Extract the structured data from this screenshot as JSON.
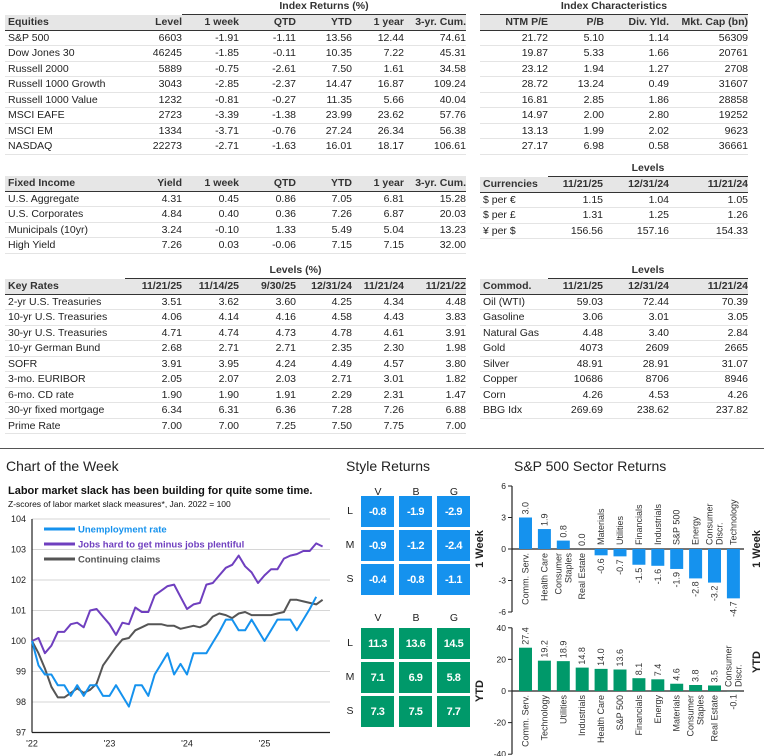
{
  "equities": {
    "group_label": "Index Returns (%)",
    "headers": [
      "Equities",
      "Level",
      "1 week",
      "QTD",
      "YTD",
      "1 year",
      "3-yr. Cum."
    ],
    "rows": [
      [
        "S&P 500",
        "6603",
        "-1.91",
        "-1.11",
        "13.56",
        "12.44",
        "74.61"
      ],
      [
        "Dow Jones 30",
        "46245",
        "-1.85",
        "-0.11",
        "10.35",
        "7.22",
        "45.31"
      ],
      [
        "Russell 2000",
        "5889",
        "-0.75",
        "-2.61",
        "7.50",
        "1.61",
        "34.58"
      ],
      [
        "Russell 1000 Growth",
        "3043",
        "-2.85",
        "-2.37",
        "14.47",
        "16.87",
        "109.24"
      ],
      [
        "Russell 1000 Value",
        "1232",
        "-0.81",
        "-0.27",
        "11.35",
        "5.66",
        "40.04"
      ],
      [
        "MSCI EAFE",
        "2723",
        "-3.39",
        "-1.38",
        "23.99",
        "23.62",
        "57.76"
      ],
      [
        "MSCI EM",
        "1334",
        "-3.71",
        "-0.76",
        "27.24",
        "26.34",
        "56.38"
      ],
      [
        "NASDAQ",
        "22273",
        "-2.71",
        "-1.63",
        "16.01",
        "18.17",
        "106.61"
      ]
    ]
  },
  "index_characteristics": {
    "group_label": "Index Characteristics",
    "headers": [
      "NTM P/E",
      "P/B",
      "Div. Yld.",
      "Mkt. Cap (bn)"
    ],
    "rows": [
      [
        "21.72",
        "5.10",
        "1.14",
        "56309"
      ],
      [
        "19.87",
        "5.33",
        "1.66",
        "20761"
      ],
      [
        "23.12",
        "1.94",
        "1.27",
        "2708"
      ],
      [
        "28.72",
        "13.24",
        "0.49",
        "31607"
      ],
      [
        "16.81",
        "2.85",
        "1.86",
        "28858"
      ],
      [
        "14.97",
        "2.00",
        "2.80",
        "19252"
      ],
      [
        "13.13",
        "1.99",
        "2.02",
        "9623"
      ],
      [
        "27.17",
        "6.98",
        "0.58",
        "36661"
      ]
    ]
  },
  "fixed_income": {
    "headers": [
      "Fixed Income",
      "Yield",
      "1 week",
      "QTD",
      "YTD",
      "1 year",
      "3-yr. Cum."
    ],
    "rows": [
      [
        "U.S. Aggregate",
        "4.31",
        "0.45",
        "0.86",
        "7.05",
        "6.81",
        "15.28"
      ],
      [
        "U.S. Corporates",
        "4.84",
        "0.40",
        "0.36",
        "7.26",
        "6.87",
        "20.03"
      ],
      [
        "Municipals (10yr)",
        "3.24",
        "-0.10",
        "1.33",
        "5.49",
        "5.04",
        "13.23"
      ],
      [
        "High Yield",
        "7.26",
        "0.03",
        "-0.06",
        "7.15",
        "7.15",
        "32.00"
      ]
    ]
  },
  "key_rates": {
    "group_label": "Levels (%)",
    "headers": [
      "Key Rates",
      "11/21/25",
      "11/14/25",
      "9/30/25",
      "12/31/24",
      "11/21/24",
      "11/21/22"
    ],
    "rows": [
      [
        "2-yr U.S. Treasuries",
        "3.51",
        "3.62",
        "3.60",
        "4.25",
        "4.34",
        "4.48"
      ],
      [
        "10-yr U.S. Treasuries",
        "4.06",
        "4.14",
        "4.16",
        "4.58",
        "4.43",
        "3.83"
      ],
      [
        "30-yr U.S. Treasuries",
        "4.71",
        "4.74",
        "4.73",
        "4.78",
        "4.61",
        "3.91"
      ],
      [
        "10-yr German Bund",
        "2.68",
        "2.71",
        "2.71",
        "2.35",
        "2.30",
        "1.98"
      ],
      [
        "SOFR",
        "3.91",
        "3.95",
        "4.24",
        "4.49",
        "4.57",
        "3.80"
      ],
      [
        "3-mo. EURIBOR",
        "2.05",
        "2.07",
        "2.03",
        "2.71",
        "3.01",
        "1.82"
      ],
      [
        "6-mo. CD rate",
        "1.90",
        "1.90",
        "1.91",
        "2.29",
        "2.31",
        "1.47"
      ],
      [
        "30-yr fixed mortgage",
        "6.34",
        "6.31",
        "6.36",
        "7.28",
        "7.26",
        "6.88"
      ],
      [
        "Prime Rate",
        "7.00",
        "7.00",
        "7.25",
        "7.50",
        "7.75",
        "7.00"
      ]
    ]
  },
  "currencies": {
    "group_label": "Levels",
    "headers": [
      "Currencies",
      "11/21/25",
      "12/31/24",
      "11/21/24"
    ],
    "rows": [
      [
        "$ per €",
        "1.15",
        "1.04",
        "1.05"
      ],
      [
        "$ per £",
        "1.31",
        "1.25",
        "1.26"
      ],
      [
        "¥ per $",
        "156.56",
        "157.16",
        "154.33"
      ]
    ]
  },
  "commodities": {
    "group_label": "Levels",
    "headers": [
      "Commod.",
      "11/21/25",
      "12/31/24",
      "11/21/24"
    ],
    "rows": [
      [
        "Oil (WTI)",
        "59.03",
        "72.44",
        "70.39"
      ],
      [
        "Gasoline",
        "3.06",
        "3.01",
        "3.05"
      ],
      [
        "Natural Gas",
        "4.48",
        "3.40",
        "2.84"
      ],
      [
        "Gold",
        "4073",
        "2609",
        "2665"
      ],
      [
        "Silver",
        "48.91",
        "28.91",
        "31.07"
      ],
      [
        "Copper",
        "10686",
        "8706",
        "8946"
      ],
      [
        "Corn",
        "4.26",
        "4.53",
        "4.26"
      ],
      [
        "BBG Idx",
        "269.69",
        "238.62",
        "237.82"
      ]
    ]
  },
  "chart_of_week": {
    "section_title": "Chart of the Week",
    "title": "Labor market slack has been building for quite some time.",
    "subtitle": "Z-scores of labor market slack measures*, Jan. 2022 = 100"
  },
  "style_returns": {
    "title": "Style Returns",
    "columns": [
      "V",
      "B",
      "G"
    ],
    "rows": [
      "L",
      "M",
      "S"
    ],
    "week": [
      [
        "-0.8",
        "-1.9",
        "-2.9"
      ],
      [
        "-0.9",
        "-1.2",
        "-2.4"
      ],
      [
        "-0.4",
        "-0.8",
        "-1.1"
      ]
    ],
    "ytd": [
      [
        "11.3",
        "13.6",
        "14.5"
      ],
      [
        "7.1",
        "6.9",
        "5.8"
      ],
      [
        "7.3",
        "7.5",
        "7.7"
      ]
    ],
    "colors": {
      "week": "#1592ee",
      "ytd": "#00996a"
    }
  },
  "sector_returns": {
    "title": "S&P 500 Sector Returns"
  },
  "chart_data": [
    {
      "type": "line",
      "title": "Labor market slack has been building for quite some time.",
      "subtitle": "Z-scores of labor market slack measures*, Jan. 2022 = 100",
      "x_start": "2022-01",
      "x_frequency": "monthly",
      "x_ticks": [
        "'22",
        "'23",
        "'24",
        "'25"
      ],
      "y_ticks": [
        "97",
        "98",
        "99",
        "100",
        "101",
        "102",
        "103",
        "104"
      ],
      "ylim": [
        97,
        104
      ],
      "grid": true,
      "legend_position": "top-left",
      "series": [
        {
          "name": "Unemployment rate",
          "color": "#1592ee",
          "values": [
            100,
            99.2,
            98.9,
            98.9,
            98.55,
            98.55,
            98.2,
            98.55,
            98.2,
            98.55,
            98.55,
            98.2,
            98.2,
            98.55,
            98.2,
            97.85,
            98.55,
            98.55,
            98.2,
            98.9,
            99.25,
            99.6,
            98.9,
            99.25,
            98.9,
            99.6,
            99.6,
            99.6,
            99.95,
            100.3,
            100.7,
            100.7,
            100.35,
            100.35,
            100.7,
            100.35,
            100,
            100.35,
            100.7,
            100.7,
            100.7,
            100.35,
            100.7,
            101.05,
            101.45
          ]
        },
        {
          "name": "Jobs hard to get minus jobs plentiful",
          "color": "#6f3fbf",
          "values": [
            100,
            100.1,
            99.6,
            99.85,
            100.3,
            100.3,
            100.55,
            100.6,
            100.45,
            101,
            101.05,
            100.8,
            100.55,
            100.2,
            100.6,
            100.55,
            101.1,
            100.95,
            100.95,
            101.5,
            101.65,
            101.8,
            101.85,
            101.45,
            101.05,
            101.2,
            101.25,
            101.85,
            101.9,
            102.15,
            102.4,
            102.5,
            102.8,
            102.45,
            102.25,
            101.9,
            102.15,
            102.35,
            102.35,
            102.7,
            102.8,
            102.85,
            102.95,
            102.95,
            103.2,
            103.1
          ]
        },
        {
          "name": "Continuing claims",
          "color": "#555555",
          "values": [
            100,
            99.6,
            99.1,
            98.5,
            98.15,
            98.15,
            98.3,
            98.45,
            98.3,
            98.4,
            98.6,
            99.2,
            99.5,
            99.8,
            100.05,
            100.1,
            100.35,
            100.45,
            100.55,
            100.55,
            100.55,
            100.5,
            100.5,
            100.4,
            100.45,
            100.5,
            100.45,
            100.55,
            100.8,
            100.9,
            100.85,
            100.75,
            100.9,
            100.95,
            100.85,
            100.85,
            100.85,
            100.85,
            100.9,
            100.95,
            101.35,
            101.35,
            101.3,
            101.25,
            101.2,
            101.35
          ]
        }
      ]
    },
    {
      "type": "bar",
      "name": "1 Week",
      "ylabel": "1 Week",
      "color": "#1592ee",
      "ylim": [
        -6,
        6
      ],
      "y_ticks": [
        "6",
        "3",
        "0",
        "-3",
        "-6"
      ],
      "categories": [
        [
          "Comm. Serv."
        ],
        [
          "Health Care"
        ],
        [
          "Consumer",
          "Staples"
        ],
        [
          "Real Estate"
        ],
        [
          "Materials"
        ],
        [
          "Utilities"
        ],
        [
          "Financials"
        ],
        [
          "Industrials"
        ],
        [
          "S&P 500"
        ],
        [
          "Energy"
        ],
        [
          "Consumer",
          "Discr."
        ],
        [
          "Technology"
        ]
      ],
      "values": [
        3.0,
        1.9,
        0.8,
        0.0,
        -0.6,
        -0.7,
        -1.5,
        -1.6,
        -1.9,
        -2.8,
        -3.2,
        -4.7
      ],
      "labels": [
        "3.0",
        "1.9",
        "0.8",
        "0.0",
        "-0.6",
        "-0.7",
        "-1.5",
        "-1.6",
        "-1.9",
        "-2.8",
        "-3.2",
        "-4.7"
      ]
    },
    {
      "type": "bar",
      "name": "YTD",
      "ylabel": "YTD",
      "color": "#00996a",
      "ylim": [
        -40,
        40
      ],
      "y_ticks": [
        "40",
        "20",
        "0",
        "-20",
        "-40"
      ],
      "categories": [
        [
          "Comm. Serv."
        ],
        [
          "Technology"
        ],
        [
          "Utilities"
        ],
        [
          "Industrials"
        ],
        [
          "Health Care"
        ],
        [
          "S&P 500"
        ],
        [
          "Financials"
        ],
        [
          "Energy"
        ],
        [
          "Materials"
        ],
        [
          "Consumer",
          "Staples"
        ],
        [
          "Real Estate"
        ],
        [
          "Consumer",
          "Discr."
        ]
      ],
      "values": [
        27.4,
        19.2,
        18.9,
        14.8,
        14.0,
        13.6,
        8.1,
        7.4,
        4.6,
        3.8,
        3.5,
        -0.1
      ],
      "labels": [
        "27.4",
        "19.2",
        "18.9",
        "14.8",
        "14.0",
        "13.6",
        "8.1",
        "7.4",
        "4.6",
        "3.8",
        "3.5",
        "-0.1"
      ]
    }
  ]
}
